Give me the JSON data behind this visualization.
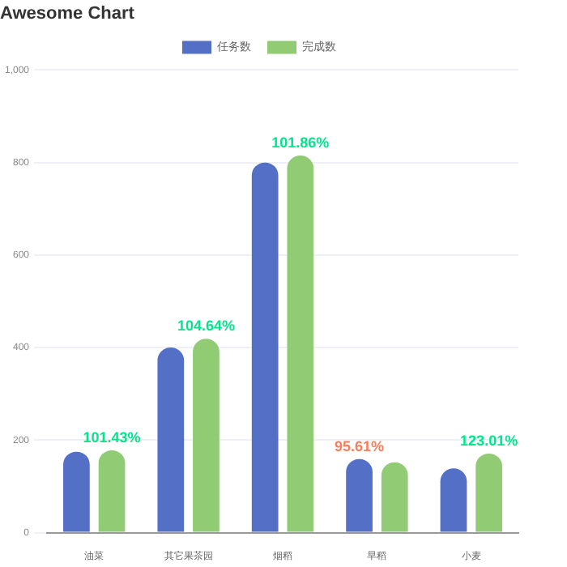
{
  "chart_data": {
    "type": "bar",
    "title": "Awesome Chart",
    "categories": [
      "油菜",
      "其它果茶园",
      "烟稻",
      "早稻",
      "小麦"
    ],
    "series": [
      {
        "name": "任务数",
        "color": "#5470c6",
        "values": [
          175,
          400,
          800,
          159,
          139
        ]
      },
      {
        "name": "完成数",
        "color": "#91cc75",
        "values": [
          178,
          419,
          815,
          152,
          171
        ]
      }
    ],
    "ylim": [
      0,
      1000
    ],
    "yticks": [
      0,
      200,
      400,
      600,
      800,
      {
        "value": 1000,
        "label": "1,000"
      }
    ],
    "grid": "y",
    "legend": "top",
    "annotations": [
      "101.43%",
      "104.64%",
      "101.86%",
      "95.61%",
      "123.01%"
    ]
  }
}
